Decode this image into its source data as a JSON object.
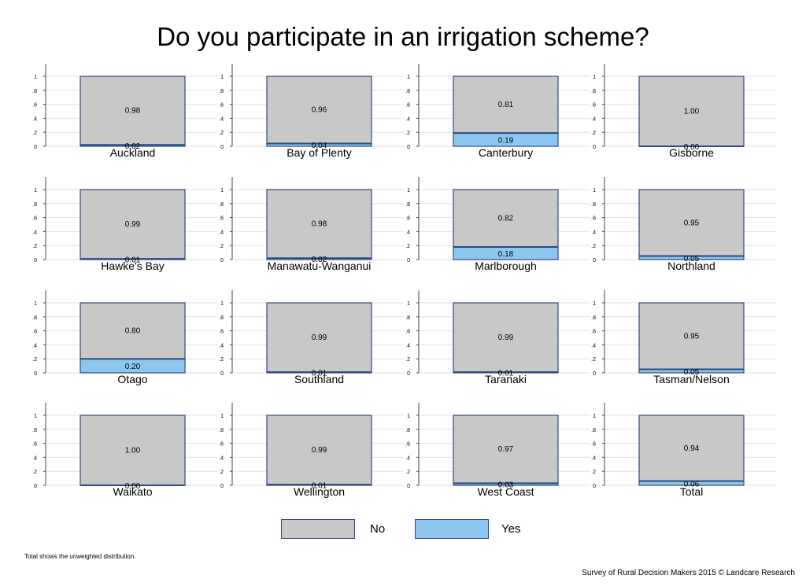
{
  "chart_data": {
    "type": "bar",
    "title": "Do you participate in an irrigation scheme?",
    "stacked": true,
    "ylim": [
      0,
      1
    ],
    "yticks": [
      "0",
      ".2",
      ".4",
      ".6",
      ".8",
      "1"
    ],
    "ytick_values": [
      0,
      0.2,
      0.4,
      0.6,
      0.8,
      1
    ],
    "grid": true,
    "legend": {
      "position": "bottom",
      "entries": [
        "No",
        "Yes"
      ]
    },
    "colors": {
      "No": "#c8c8c8",
      "Yes": "#8dc6ee",
      "outline": "#2f4a7a",
      "grid": "#e2e2e2"
    },
    "panels": [
      {
        "region": "Auckland",
        "no": 0.98,
        "yes": 0.02,
        "no_label": "0.98",
        "yes_label": "0.02"
      },
      {
        "region": "Bay of Plenty",
        "no": 0.96,
        "yes": 0.04,
        "no_label": "0.96",
        "yes_label": "0.04"
      },
      {
        "region": "Canterbury",
        "no": 0.81,
        "yes": 0.19,
        "no_label": "0.81",
        "yes_label": "0.19"
      },
      {
        "region": "Gisborne",
        "no": 1.0,
        "yes": 0.0,
        "no_label": "1.00",
        "yes_label": "0.00"
      },
      {
        "region": "Hawke's Bay",
        "no": 0.99,
        "yes": 0.01,
        "no_label": "0.99",
        "yes_label": "0.01"
      },
      {
        "region": "Manawatu-Wanganui",
        "no": 0.98,
        "yes": 0.02,
        "no_label": "0.98",
        "yes_label": "0.02"
      },
      {
        "region": "Marlborough",
        "no": 0.82,
        "yes": 0.18,
        "no_label": "0.82",
        "yes_label": "0.18"
      },
      {
        "region": "Northland",
        "no": 0.95,
        "yes": 0.05,
        "no_label": "0.95",
        "yes_label": "0.05"
      },
      {
        "region": "Otago",
        "no": 0.8,
        "yes": 0.2,
        "no_label": "0.80",
        "yes_label": "0.20"
      },
      {
        "region": "Southland",
        "no": 0.99,
        "yes": 0.01,
        "no_label": "0.99",
        "yes_label": "0.01"
      },
      {
        "region": "Taranaki",
        "no": 0.99,
        "yes": 0.01,
        "no_label": "0.99",
        "yes_label": "0.01"
      },
      {
        "region": "Tasman/Nelson",
        "no": 0.95,
        "yes": 0.05,
        "no_label": "0.95",
        "yes_label": "0.05"
      },
      {
        "region": "Waikato",
        "no": 1.0,
        "yes": 0.0,
        "no_label": "1.00",
        "yes_label": "0.00"
      },
      {
        "region": "Wellington",
        "no": 0.99,
        "yes": 0.01,
        "no_label": "0.99",
        "yes_label": "0.01"
      },
      {
        "region": "West Coast",
        "no": 0.97,
        "yes": 0.03,
        "no_label": "0.97",
        "yes_label": "0.03"
      },
      {
        "region": "Total",
        "no": 0.94,
        "yes": 0.06,
        "no_label": "0.94",
        "yes_label": "0.06"
      }
    ]
  },
  "footer": {
    "note": "Total shows the unweighted distribution.",
    "credit": "Survey of Rural Decision Makers 2015 © Landcare Research"
  }
}
